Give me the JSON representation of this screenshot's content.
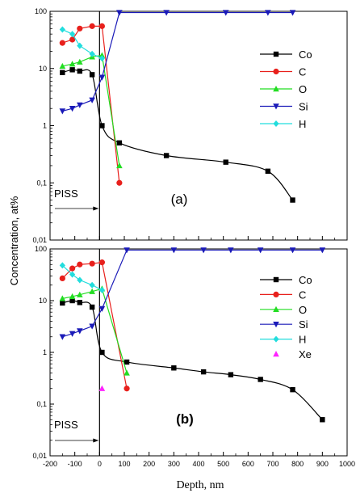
{
  "figure": {
    "xlabel": "Depth, nm",
    "ylabel": "Concentration, at%",
    "x_ticks": [
      "-200",
      "-100",
      "0",
      "100",
      "200",
      "300",
      "400",
      "500",
      "600",
      "700",
      "800",
      "900",
      "1000"
    ],
    "y_ticks": [
      "0,01",
      "0,1",
      "1",
      "10",
      "100"
    ]
  },
  "chart_data": [
    {
      "type": "line",
      "panel_label": "(a)",
      "annotation": "PISS",
      "xlim": [
        -200,
        1000
      ],
      "ylim": [
        0.01,
        100
      ],
      "yscale": "log",
      "legend_placement": "right",
      "series": [
        {
          "name": "Co",
          "color": "#000000",
          "marker": "square",
          "x": [
            -150,
            -110,
            -80,
            -30,
            10,
            80,
            270,
            510,
            680,
            780
          ],
          "y": [
            8.5,
            9.5,
            9,
            7.8,
            1.0,
            0.5,
            0.3,
            0.23,
            0.16,
            0.05
          ]
        },
        {
          "name": "C",
          "color": "#e8201c",
          "marker": "circle",
          "x": [
            -150,
            -110,
            -80,
            -30,
            10,
            80
          ],
          "y": [
            28,
            32,
            50,
            55,
            55,
            0.1
          ]
        },
        {
          "name": "O",
          "color": "#22dd22",
          "marker": "triangle-up",
          "x": [
            -150,
            -110,
            -80,
            -30,
            10,
            80
          ],
          "y": [
            11,
            12,
            13,
            16,
            17,
            0.2
          ]
        },
        {
          "name": "Si",
          "color": "#1a1ab8",
          "marker": "triangle-down",
          "x": [
            -150,
            -110,
            -80,
            -30,
            10,
            80,
            270,
            510,
            680,
            780
          ],
          "y": [
            1.8,
            2,
            2.3,
            2.8,
            7,
            95,
            95,
            95,
            95,
            95
          ]
        },
        {
          "name": "H",
          "color": "#22dddd",
          "marker": "diamond",
          "x": [
            -150,
            -110,
            -80,
            -30,
            10
          ],
          "y": [
            48,
            40,
            25,
            18,
            15
          ]
        }
      ]
    },
    {
      "type": "line",
      "panel_label": "(b)",
      "annotation": "PISS",
      "xlim": [
        -200,
        1000
      ],
      "ylim": [
        0.01,
        100
      ],
      "yscale": "log",
      "legend_placement": "right",
      "series": [
        {
          "name": "Co",
          "color": "#000000",
          "marker": "square",
          "x": [
            -150,
            -110,
            -80,
            -30,
            10,
            110,
            300,
            420,
            530,
            650,
            780,
            900
          ],
          "y": [
            9,
            10,
            9.2,
            7.5,
            1.0,
            0.65,
            0.5,
            0.42,
            0.37,
            0.3,
            0.19,
            0.05
          ]
        },
        {
          "name": "C",
          "color": "#e8201c",
          "marker": "circle",
          "x": [
            -150,
            -110,
            -80,
            -30,
            10,
            110
          ],
          "y": [
            27,
            42,
            50,
            52,
            55,
            0.2
          ]
        },
        {
          "name": "O",
          "color": "#22dd22",
          "marker": "triangle-up",
          "x": [
            -150,
            -110,
            -80,
            -30,
            10,
            110
          ],
          "y": [
            11,
            12,
            13,
            15,
            17,
            0.4
          ]
        },
        {
          "name": "Si",
          "color": "#1a1ab8",
          "marker": "triangle-down",
          "x": [
            -150,
            -110,
            -80,
            -30,
            10,
            110,
            300,
            420,
            530,
            650,
            780,
            900
          ],
          "y": [
            2,
            2.3,
            2.6,
            3.2,
            7,
            95,
            95,
            95,
            95,
            95,
            95,
            95
          ]
        },
        {
          "name": "H",
          "color": "#22dddd",
          "marker": "diamond",
          "x": [
            -150,
            -110,
            -80,
            -30,
            10
          ],
          "y": [
            48,
            32,
            25,
            20,
            16
          ]
        },
        {
          "name": "Xe",
          "color": "#ff22ff",
          "marker": "triangle-up",
          "x": [
            10
          ],
          "y": [
            0.2
          ]
        }
      ]
    }
  ]
}
